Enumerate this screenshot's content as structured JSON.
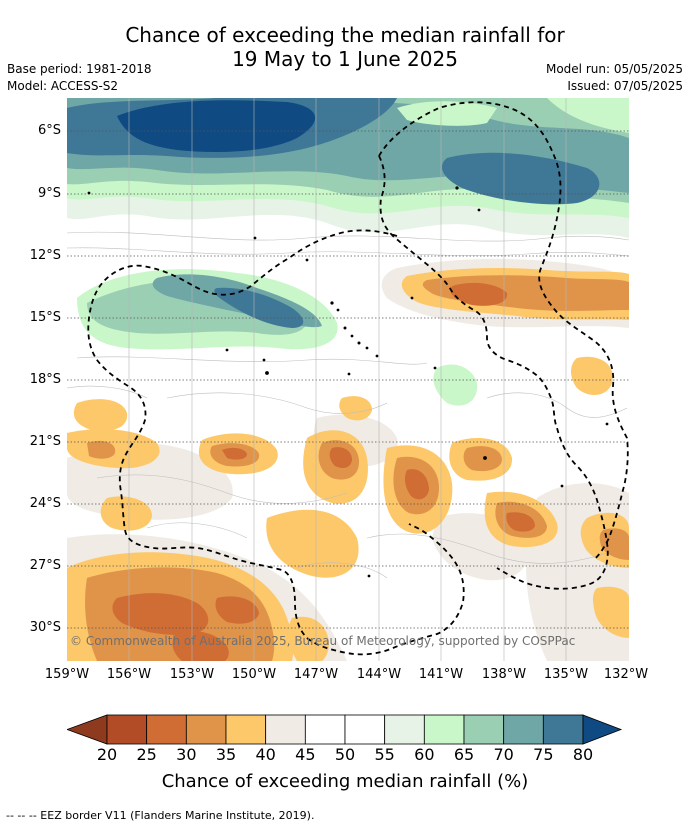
{
  "header": {
    "title_line1": "Chance of exceeding the median rainfall for",
    "title_line2": "19 May to 1 June 2025",
    "base_period": "Base period: 1981-2018",
    "model": "Model: ACCESS-S2",
    "model_run": "Model run: 05/05/2025",
    "issued": "Issued: 07/05/2025"
  },
  "map": {
    "copyright": "© Commonwealth of Australia 2025, Bureau of Meteorology, supported by COSPPac",
    "lat_labels": [
      "6°S",
      "9°S",
      "12°S",
      "15°S",
      "18°S",
      "21°S",
      "24°S",
      "27°S",
      "30°S"
    ],
    "lon_labels": [
      "159°W",
      "156°W",
      "153°W",
      "150°W",
      "147°W",
      "144°W",
      "141°W",
      "138°W",
      "135°W",
      "132°W"
    ]
  },
  "colorbar": {
    "ticks": [
      "20",
      "25",
      "30",
      "35",
      "40",
      "45",
      "50",
      "55",
      "60",
      "65",
      "70",
      "75",
      "80"
    ],
    "colors": [
      "#8e3a1f",
      "#b24c27",
      "#cf6d35",
      "#e0944a",
      "#fdc86a",
      "#f0ebe5",
      "#ffffff",
      "#ffffff",
      "#e6f3e6",
      "#c9f7c9",
      "#9bcfb4",
      "#6fa6a6",
      "#3f7796",
      "#0f4a82"
    ],
    "title": "Chance of exceeding median rainfall (%)"
  },
  "footer": {
    "legend": "--  --  -- EEZ border V11 (Flanders Marine Institute, 2019)."
  }
}
